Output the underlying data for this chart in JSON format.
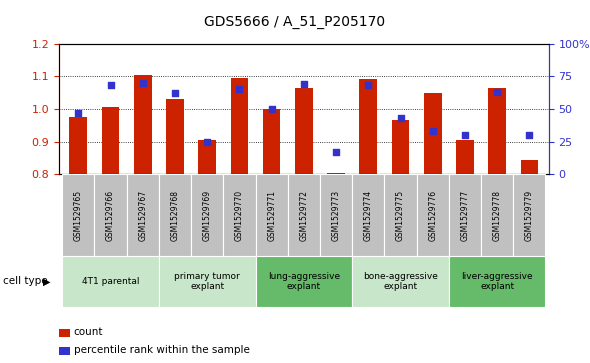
{
  "title": "GDS5666 / A_51_P205170",
  "samples": [
    "GSM1529765",
    "GSM1529766",
    "GSM1529767",
    "GSM1529768",
    "GSM1529769",
    "GSM1529770",
    "GSM1529771",
    "GSM1529772",
    "GSM1529773",
    "GSM1529774",
    "GSM1529775",
    "GSM1529776",
    "GSM1529777",
    "GSM1529778",
    "GSM1529779"
  ],
  "count_values": [
    0.975,
    1.005,
    1.105,
    1.03,
    0.905,
    1.095,
    1.0,
    1.065,
    0.805,
    1.09,
    0.965,
    1.05,
    0.905,
    1.065,
    0.845
  ],
  "percentile_values": [
    47,
    68,
    70,
    62,
    25,
    65,
    50,
    69,
    17,
    68,
    43,
    33,
    30,
    63,
    30
  ],
  "ylim_left": [
    0.8,
    1.2
  ],
  "ylim_right": [
    0,
    100
  ],
  "yticks_left": [
    0.8,
    0.9,
    1.0,
    1.1,
    1.2
  ],
  "yticks_right": [
    0,
    25,
    50,
    75,
    100
  ],
  "ytick_labels_right": [
    "0",
    "25",
    "50",
    "75",
    "100%"
  ],
  "cell_type_groups": [
    {
      "label": "4T1 parental",
      "start": 0,
      "end": 2
    },
    {
      "label": "primary tumor\nexplant",
      "start": 3,
      "end": 5
    },
    {
      "label": "lung-aggressive\nexplant",
      "start": 6,
      "end": 8
    },
    {
      "label": "bone-aggressive\nexplant",
      "start": 9,
      "end": 11
    },
    {
      "label": "liver-aggressive\nexplant",
      "start": 12,
      "end": 14
    }
  ],
  "cell_type_colors": [
    "#c8e6c9",
    "#c8e6c9",
    "#66bb6a",
    "#c8e6c9",
    "#66bb6a"
  ],
  "bar_color": "#cc2200",
  "dot_color": "#3333cc",
  "bar_width": 0.55,
  "ylabel_left_color": "#cc2200",
  "ylabel_right_color": "#3333cc",
  "cell_type_label": "cell type",
  "legend_count_label": "count",
  "legend_pct_label": "percentile rank within the sample",
  "sample_row_color": "#c0c0c0",
  "title_fontsize": 10
}
